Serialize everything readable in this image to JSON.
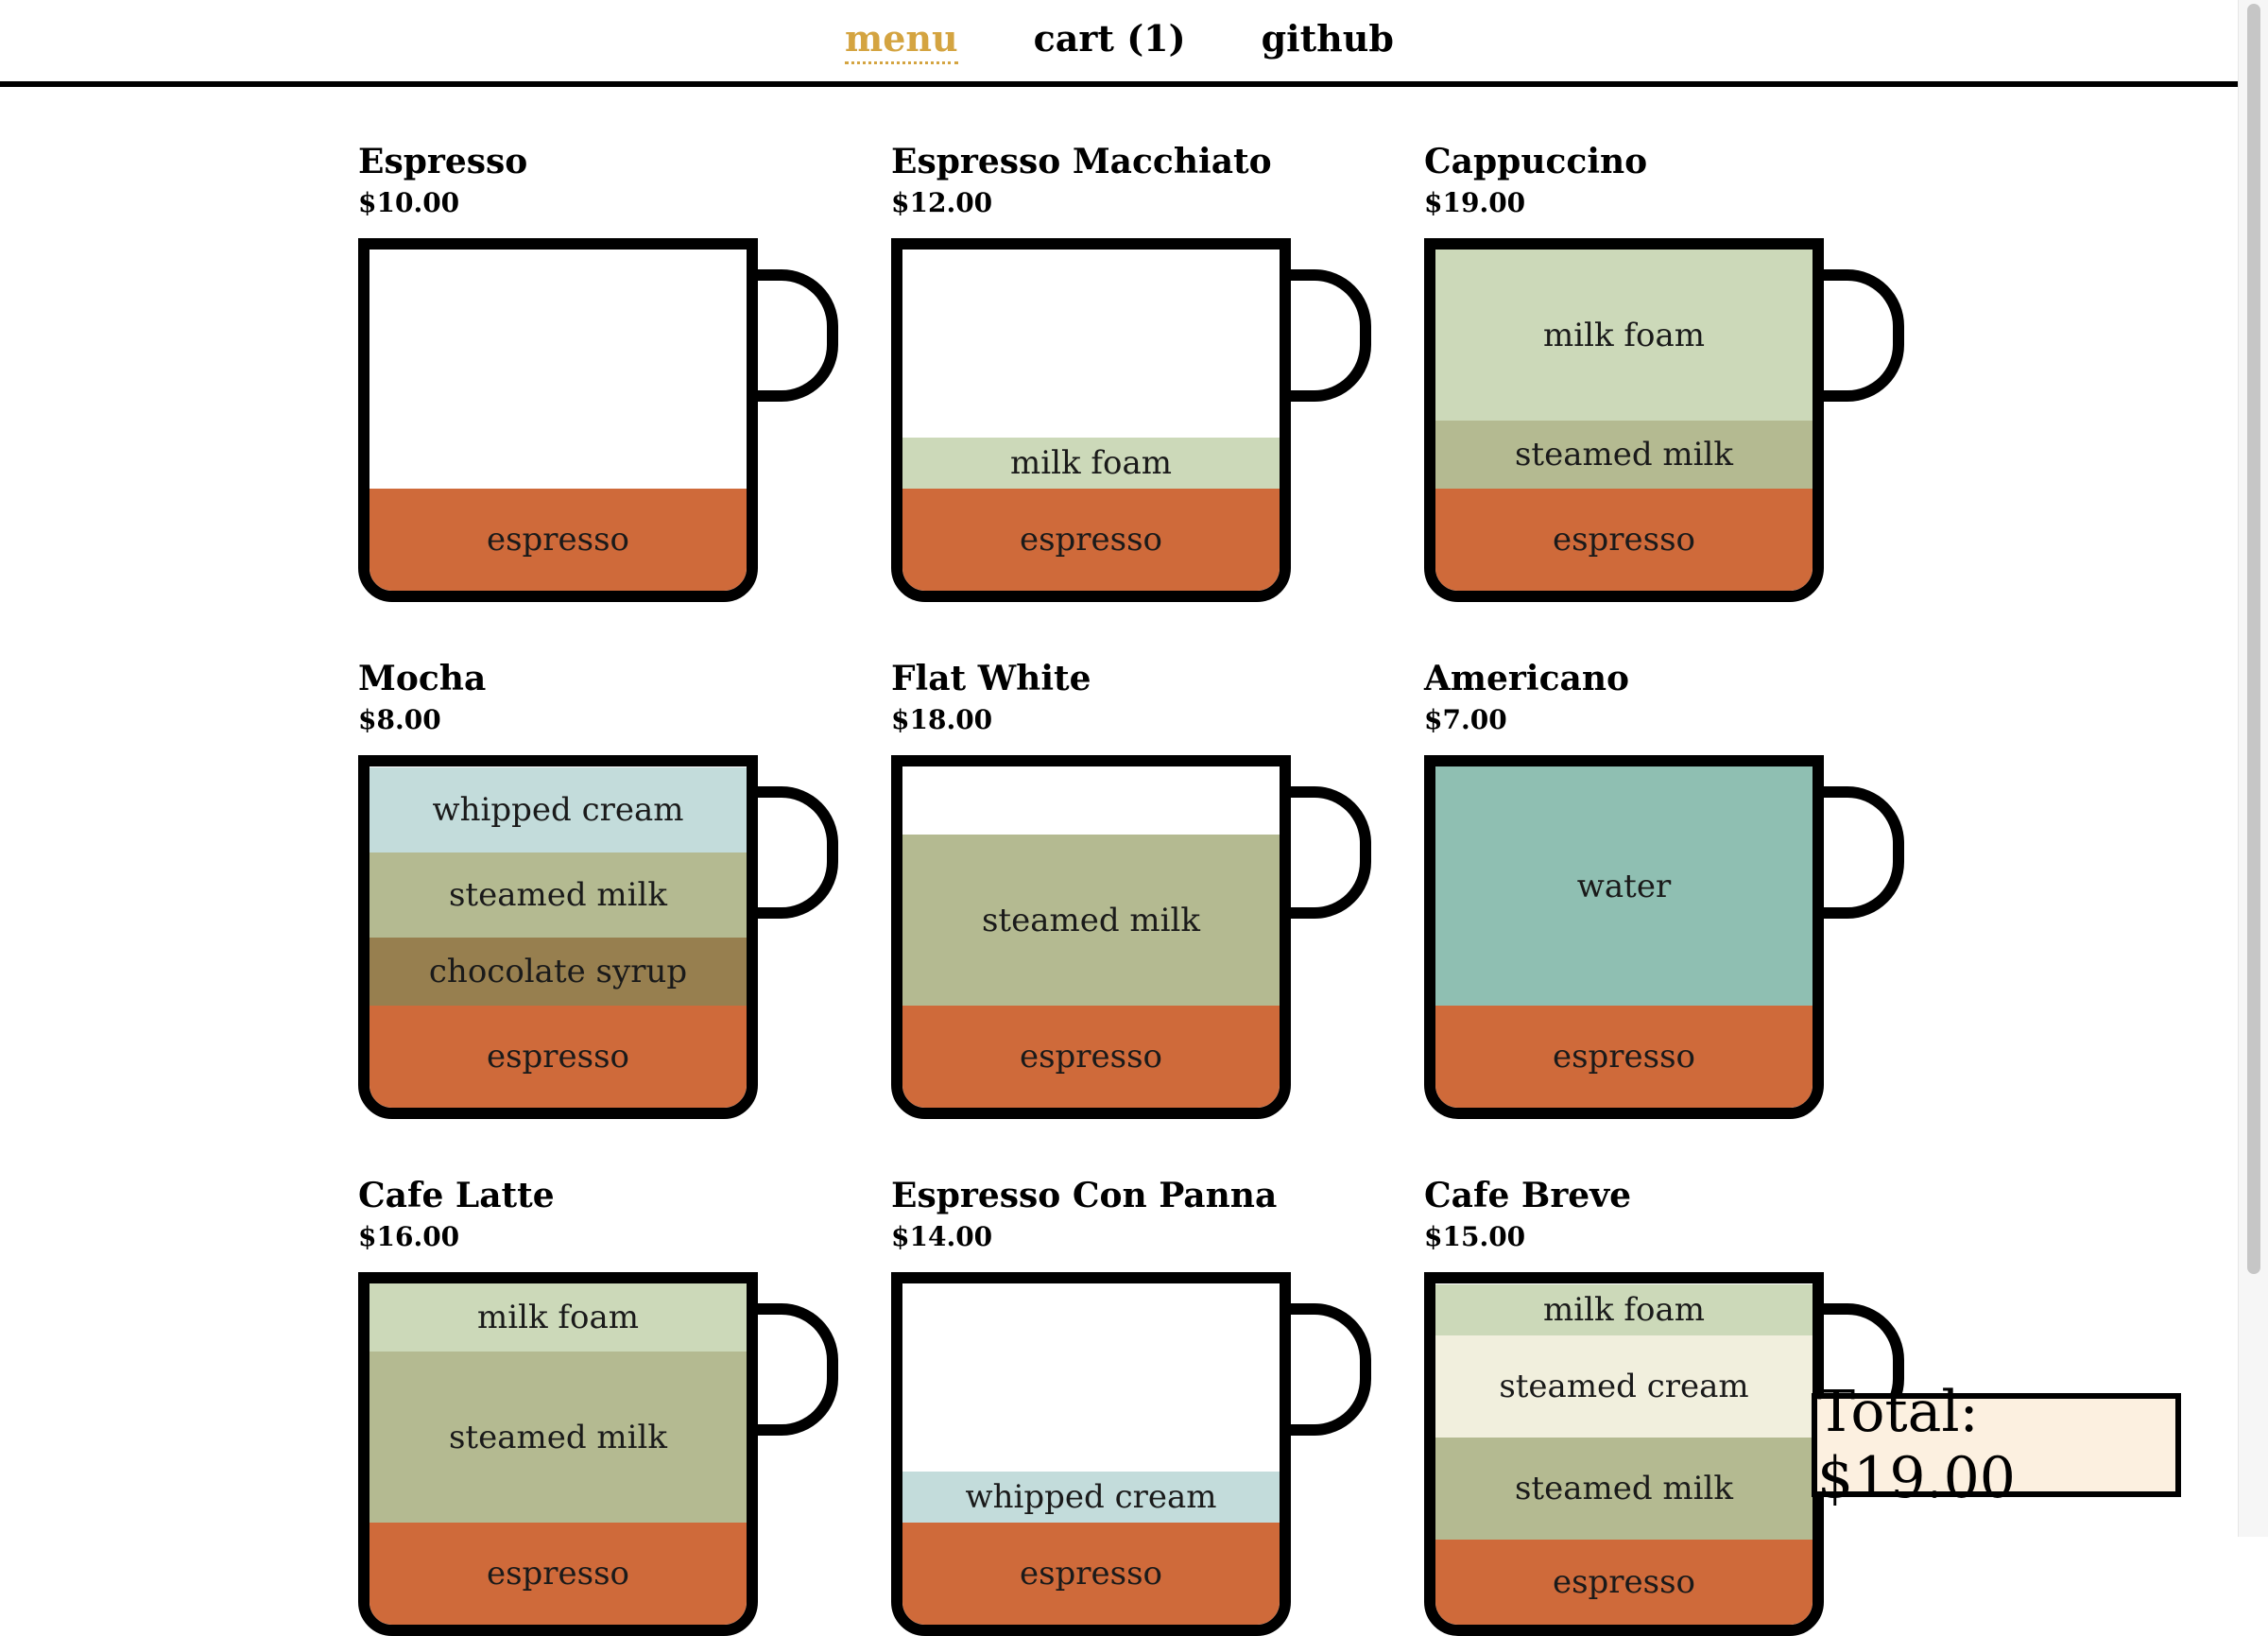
{
  "nav": {
    "items": [
      {
        "label": "menu",
        "active": true
      },
      {
        "label": "cart (1)",
        "active": false
      },
      {
        "label": "github",
        "active": false
      }
    ]
  },
  "menu": [
    {
      "name": "Espresso",
      "price": "$10.00",
      "layers": [
        {
          "label": "espresso",
          "fraction": 0.3,
          "color": "#cf6a3a"
        }
      ]
    },
    {
      "name": "Espresso Macchiato",
      "price": "$12.00",
      "layers": [
        {
          "label": "milk foam",
          "fraction": 0.15,
          "color": "#ccd9b9"
        },
        {
          "label": "espresso",
          "fraction": 0.3,
          "color": "#cf6a3a"
        }
      ]
    },
    {
      "name": "Cappuccino",
      "price": "$19.00",
      "layers": [
        {
          "label": "milk foam",
          "fraction": 0.5,
          "color": "#ccd9b9"
        },
        {
          "label": "steamed milk",
          "fraction": 0.2,
          "color": "#b4ba91"
        },
        {
          "label": "espresso",
          "fraction": 0.3,
          "color": "#cf6a3a"
        }
      ]
    },
    {
      "name": "Mocha",
      "price": "$8.00",
      "layers": [
        {
          "label": "whipped cream",
          "fraction": 0.25,
          "color": "#c3dcdb"
        },
        {
          "label": "steamed milk",
          "fraction": 0.25,
          "color": "#b4ba91"
        },
        {
          "label": "chocolate syrup",
          "fraction": 0.2,
          "color": "#977f4f"
        },
        {
          "label": "espresso",
          "fraction": 0.3,
          "color": "#cf6a3a"
        }
      ]
    },
    {
      "name": "Flat White",
      "price": "$18.00",
      "layers": [
        {
          "label": "steamed milk",
          "fraction": 0.5,
          "color": "#b4ba91"
        },
        {
          "label": "espresso",
          "fraction": 0.3,
          "color": "#cf6a3a"
        }
      ]
    },
    {
      "name": "Americano",
      "price": "$7.00",
      "layers": [
        {
          "label": "water",
          "fraction": 0.7,
          "color": "#8fbfb2"
        },
        {
          "label": "espresso",
          "fraction": 0.3,
          "color": "#cf6a3a"
        }
      ]
    },
    {
      "name": "Cafe Latte",
      "price": "$16.00",
      "layers": [
        {
          "label": "milk foam",
          "fraction": 0.2,
          "color": "#ccd9b9"
        },
        {
          "label": "steamed milk",
          "fraction": 0.5,
          "color": "#b4ba91"
        },
        {
          "label": "espresso",
          "fraction": 0.3,
          "color": "#cf6a3a"
        }
      ]
    },
    {
      "name": "Espresso Con Panna",
      "price": "$14.00",
      "layers": [
        {
          "label": "whipped cream",
          "fraction": 0.15,
          "color": "#c3dcdb"
        },
        {
          "label": "espresso",
          "fraction": 0.3,
          "color": "#cf6a3a"
        }
      ]
    },
    {
      "name": "Cafe Breve",
      "price": "$15.00",
      "layers": [
        {
          "label": "milk foam",
          "fraction": 0.15,
          "color": "#ccd9b9"
        },
        {
          "label": "steamed cream",
          "fraction": 0.3,
          "color": "#f1efdd"
        },
        {
          "label": "steamed milk",
          "fraction": 0.3,
          "color": "#b4ba91"
        },
        {
          "label": "espresso",
          "fraction": 0.25,
          "color": "#cf6a3a"
        }
      ]
    }
  ],
  "total": {
    "label": "Total: $19.00"
  }
}
